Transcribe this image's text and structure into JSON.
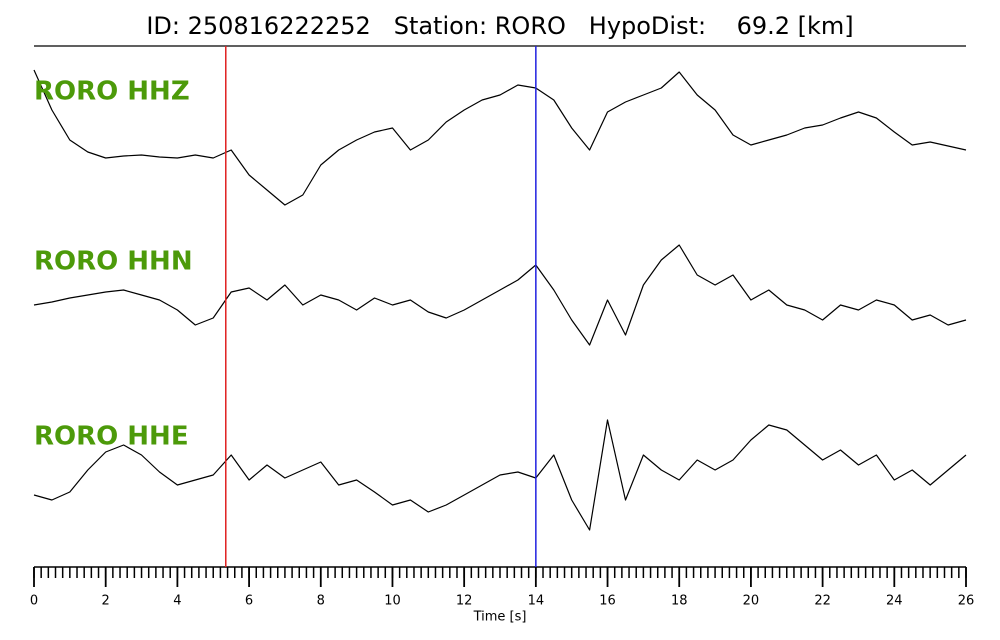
{
  "chart_data": {
    "type": "line",
    "title": "ID: 250816222252   Station: RORO   HypoDist:    69.2 [km]",
    "xlabel": "Time [s]",
    "xlim": [
      0,
      26
    ],
    "xticks": [
      0,
      2,
      4,
      6,
      8,
      10,
      12,
      14,
      16,
      18,
      20,
      22,
      24,
      26
    ],
    "minor_tick_step": 0.2,
    "ylim": [
      -90,
      90
    ],
    "label_color": "#4c9a0a",
    "markers": [
      {
        "x": 5.35,
        "color": "#e02020"
      },
      {
        "x": 14,
        "color": "#2020e0"
      }
    ],
    "x": [
      0,
      0.5,
      1,
      1.5,
      2,
      2.5,
      3,
      3.5,
      4,
      4.5,
      5,
      5.5,
      6,
      6.5,
      7,
      7.5,
      8,
      8.5,
      9,
      9.5,
      10,
      10.5,
      11,
      11.5,
      12,
      12.5,
      13,
      13.5,
      14,
      14.5,
      15,
      15.5,
      16,
      16.5,
      17,
      17.5,
      18,
      18.5,
      19,
      19.5,
      20,
      20.5,
      21,
      21.5,
      22,
      22.5,
      23,
      23.5,
      24,
      24.5,
      25,
      25.5,
      26
    ],
    "series": [
      {
        "name": "RORO HHZ",
        "color": "#000000",
        "values": [
          60,
          20,
          -10,
          -22,
          -28,
          -26,
          -25,
          -27,
          -28,
          -25,
          -28,
          -20,
          -45,
          -60,
          -75,
          -65,
          -35,
          -20,
          -10,
          -2,
          2,
          -20,
          -10,
          8,
          20,
          30,
          35,
          45,
          42,
          30,
          2,
          -20,
          18,
          28,
          35,
          42,
          58,
          35,
          20,
          -5,
          -15,
          -10,
          -5,
          2,
          5,
          12,
          18,
          12,
          -2,
          -15,
          -12,
          -16,
          -20
        ]
      },
      {
        "name": "RORO HHN",
        "color": "#000000",
        "values": [
          -5,
          -2,
          2,
          5,
          8,
          10,
          5,
          0,
          -10,
          -25,
          -18,
          8,
          12,
          0,
          15,
          -5,
          5,
          0,
          -10,
          2,
          -5,
          0,
          -12,
          -18,
          -10,
          0,
          10,
          20,
          35,
          10,
          -20,
          -45,
          0,
          -35,
          15,
          40,
          55,
          25,
          15,
          25,
          0,
          10,
          -5,
          -10,
          -20,
          -5,
          -10,
          0,
          -5,
          -20,
          -15,
          -25,
          -20
        ]
      },
      {
        "name": "RORO HHE",
        "color": "#000000",
        "values": [
          -20,
          -25,
          -17,
          5,
          23,
          30,
          20,
          3,
          -10,
          -5,
          0,
          20,
          -5,
          10,
          -3,
          5,
          13,
          -10,
          -5,
          -17,
          -30,
          -25,
          -37,
          -30,
          -20,
          -10,
          0,
          3,
          -3,
          20,
          -25,
          -55,
          55,
          -25,
          20,
          5,
          -5,
          15,
          5,
          15,
          35,
          50,
          45,
          30,
          15,
          25,
          10,
          20,
          -5,
          5,
          -10,
          5,
          20
        ]
      }
    ]
  }
}
